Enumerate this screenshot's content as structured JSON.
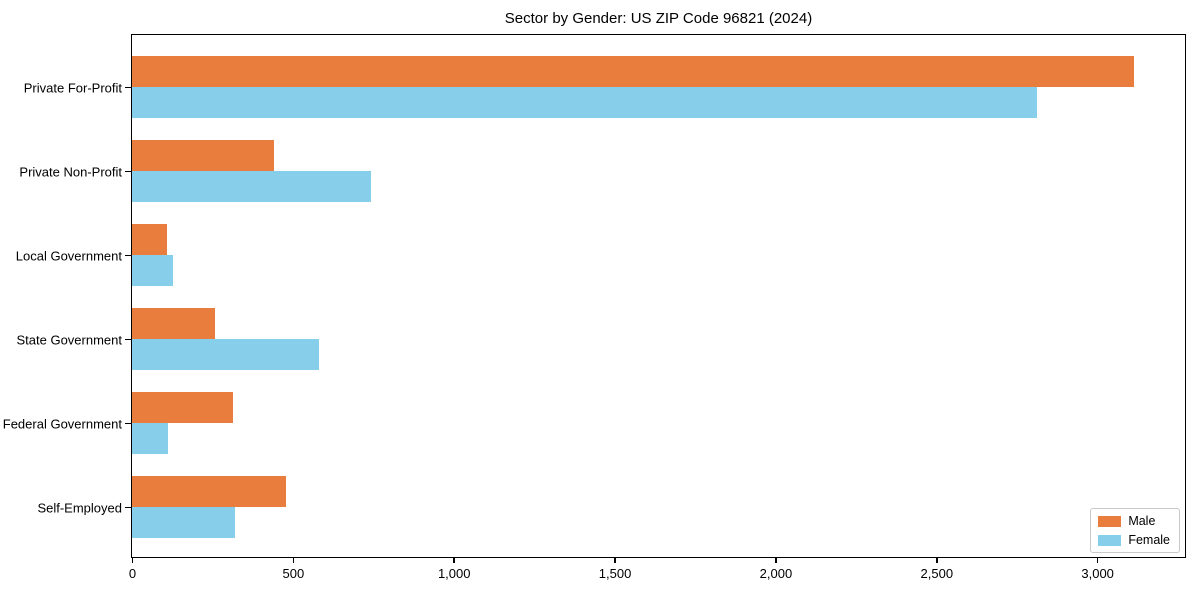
{
  "chart_data": {
    "type": "bar",
    "orientation": "horizontal",
    "title": "Sector by Gender: US ZIP Code 96821 (2024)",
    "categories": [
      "Private For-Profit",
      "Private Non-Profit",
      "Local Government",
      "State Government",
      "Federal Government",
      "Self-Employed"
    ],
    "series": [
      {
        "name": "Male",
        "color": "#e87d3d",
        "values": [
          3115,
          441,
          109,
          258,
          313,
          478
        ]
      },
      {
        "name": "Female",
        "color": "#87ceeb",
        "values": [
          2812,
          742,
          128,
          580,
          112,
          320
        ]
      }
    ],
    "xlim": [
      0,
      3273
    ],
    "xticks": [
      0,
      500,
      1000,
      1500,
      2000,
      2500,
      3000
    ],
    "xtick_labels": [
      "0",
      "500",
      "1,000",
      "1,500",
      "2,000",
      "2,500",
      "3,000"
    ],
    "grid": false,
    "background_color": "#ffffff",
    "spine_color": "#000000",
    "legend": {
      "position": "lower right",
      "entries": [
        {
          "label": "Male",
          "color": "#e87d3d"
        },
        {
          "label": "Female",
          "color": "#87ceeb"
        }
      ]
    }
  }
}
